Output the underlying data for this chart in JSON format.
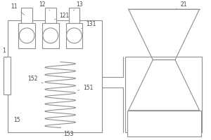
{
  "bg_color": "#ffffff",
  "line_color": "#909090",
  "line_width": 0.8,
  "fig_w": 3.0,
  "fig_h": 2.0,
  "dpi": 100
}
